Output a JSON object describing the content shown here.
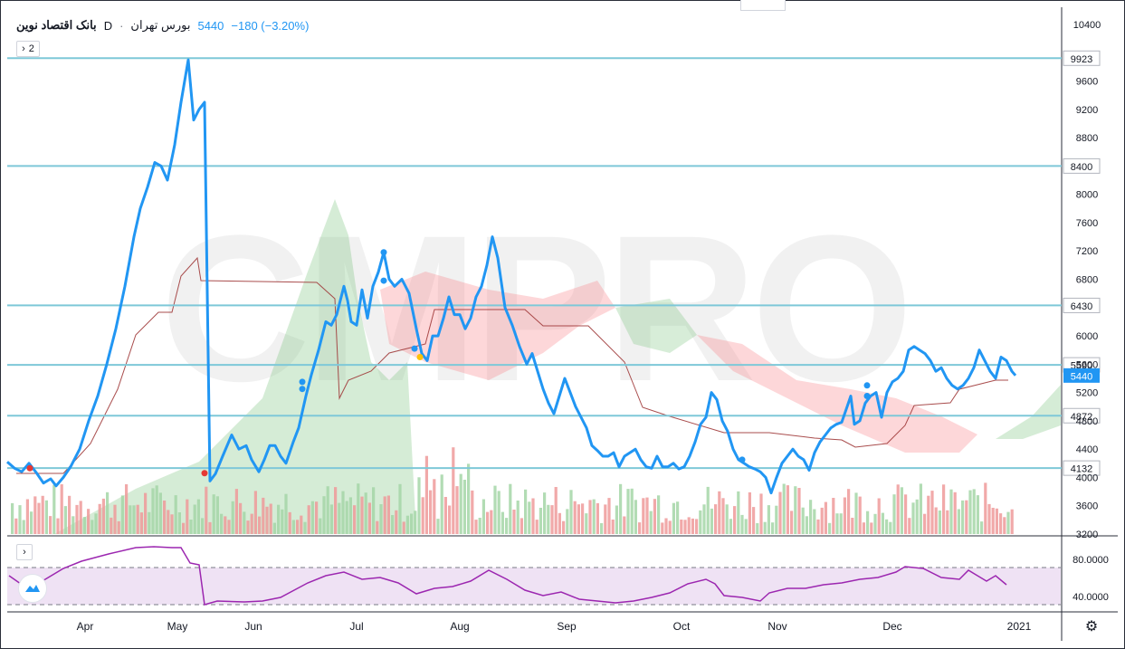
{
  "legend": {
    "title": "بانک اقتصاد نوین",
    "interval": "D",
    "exchange": "بورس تهران",
    "price": "5440",
    "change": "−180 (−3.20%)"
  },
  "panes": {
    "main_toggle": "2",
    "indicator_toggle": "›"
  },
  "watermark": "CMPRO",
  "chart_data": {
    "type": "line",
    "series": [
      {
        "values": [
          [
            0,
            4220
          ],
          [
            8,
            4130
          ],
          [
            16,
            4080
          ],
          [
            24,
            4200
          ],
          [
            32,
            4070
          ],
          [
            40,
            3920
          ],
          [
            48,
            3980
          ],
          [
            54,
            3880
          ],
          [
            62,
            4000
          ],
          [
            70,
            4150
          ],
          [
            80,
            4400
          ],
          [
            90,
            4800
          ],
          [
            100,
            5150
          ],
          [
            110,
            5600
          ],
          [
            120,
            6100
          ],
          [
            130,
            6700
          ],
          [
            140,
            7400
          ],
          [
            147,
            7800
          ],
          [
            155,
            8100
          ],
          [
            163,
            8450
          ],
          [
            170,
            8400
          ],
          [
            177,
            8200
          ],
          [
            185,
            8700
          ],
          [
            192,
            9300
          ],
          [
            200,
            9900
          ],
          [
            206,
            9050
          ],
          [
            212,
            9200
          ],
          [
            218,
            9300
          ],
          [
            224,
            3950
          ],
          [
            230,
            4050
          ],
          [
            238,
            4300
          ],
          [
            248,
            4600
          ],
          [
            256,
            4400
          ],
          [
            264,
            4450
          ],
          [
            270,
            4250
          ],
          [
            278,
            4080
          ],
          [
            284,
            4250
          ],
          [
            290,
            4450
          ],
          [
            296,
            4450
          ],
          [
            302,
            4300
          ],
          [
            308,
            4200
          ],
          [
            316,
            4500
          ],
          [
            322,
            4700
          ],
          [
            330,
            5150
          ],
          [
            336,
            5450
          ],
          [
            344,
            5800
          ],
          [
            352,
            6200
          ],
          [
            358,
            6150
          ],
          [
            364,
            6300
          ],
          [
            372,
            6700
          ],
          [
            376,
            6500
          ],
          [
            380,
            6200
          ],
          [
            386,
            6150
          ],
          [
            392,
            6650
          ],
          [
            398,
            6250
          ],
          [
            404,
            6700
          ],
          [
            410,
            6900
          ],
          [
            416,
            7180
          ],
          [
            422,
            6800
          ],
          [
            428,
            6700
          ],
          [
            436,
            6800
          ],
          [
            444,
            6600
          ],
          [
            452,
            6100
          ],
          [
            458,
            5750
          ],
          [
            464,
            5650
          ],
          [
            470,
            6000
          ],
          [
            476,
            6000
          ],
          [
            482,
            6250
          ],
          [
            488,
            6550
          ],
          [
            494,
            6300
          ],
          [
            500,
            6300
          ],
          [
            506,
            6100
          ],
          [
            512,
            6250
          ],
          [
            518,
            6550
          ],
          [
            524,
            6700
          ],
          [
            530,
            7000
          ],
          [
            536,
            7400
          ],
          [
            542,
            7100
          ],
          [
            550,
            6400
          ],
          [
            558,
            6150
          ],
          [
            566,
            5850
          ],
          [
            574,
            5600
          ],
          [
            580,
            5750
          ],
          [
            586,
            5500
          ],
          [
            592,
            5250
          ],
          [
            598,
            5050
          ],
          [
            604,
            4900
          ],
          [
            610,
            5150
          ],
          [
            616,
            5400
          ],
          [
            622,
            5200
          ],
          [
            628,
            5000
          ],
          [
            634,
            4850
          ],
          [
            640,
            4700
          ],
          [
            646,
            4450
          ],
          [
            652,
            4380
          ],
          [
            658,
            4300
          ],
          [
            664,
            4300
          ],
          [
            670,
            4350
          ],
          [
            676,
            4150
          ],
          [
            682,
            4300
          ],
          [
            688,
            4350
          ],
          [
            694,
            4400
          ],
          [
            700,
            4250
          ],
          [
            706,
            4150
          ],
          [
            712,
            4130
          ],
          [
            718,
            4300
          ],
          [
            724,
            4150
          ],
          [
            730,
            4150
          ],
          [
            736,
            4200
          ],
          [
            742,
            4120
          ],
          [
            748,
            4150
          ],
          [
            754,
            4300
          ],
          [
            760,
            4500
          ],
          [
            766,
            4750
          ],
          [
            772,
            4850
          ],
          [
            778,
            5200
          ],
          [
            784,
            5100
          ],
          [
            790,
            4800
          ],
          [
            796,
            4650
          ],
          [
            802,
            4400
          ],
          [
            808,
            4250
          ],
          [
            814,
            4200
          ],
          [
            820,
            4150
          ],
          [
            826,
            4120
          ],
          [
            832,
            4080
          ],
          [
            838,
            4000
          ],
          [
            844,
            3780
          ],
          [
            850,
            4000
          ],
          [
            856,
            4200
          ],
          [
            862,
            4300
          ],
          [
            868,
            4400
          ],
          [
            874,
            4300
          ],
          [
            880,
            4250
          ],
          [
            886,
            4100
          ],
          [
            892,
            4350
          ],
          [
            898,
            4500
          ],
          [
            904,
            4600
          ],
          [
            910,
            4700
          ],
          [
            916,
            4750
          ],
          [
            922,
            4780
          ],
          [
            928,
            5000
          ],
          [
            932,
            5150
          ],
          [
            936,
            4750
          ],
          [
            942,
            4800
          ],
          [
            948,
            5050
          ],
          [
            954,
            5150
          ],
          [
            960,
            5200
          ],
          [
            966,
            4850
          ],
          [
            972,
            5200
          ],
          [
            978,
            5350
          ],
          [
            984,
            5400
          ],
          [
            990,
            5500
          ],
          [
            996,
            5800
          ],
          [
            1002,
            5850
          ],
          [
            1008,
            5800
          ],
          [
            1014,
            5750
          ],
          [
            1020,
            5650
          ],
          [
            1026,
            5500
          ],
          [
            1032,
            5550
          ],
          [
            1038,
            5400
          ],
          [
            1044,
            5300
          ],
          [
            1050,
            5250
          ],
          [
            1056,
            5300
          ],
          [
            1062,
            5400
          ],
          [
            1068,
            5550
          ],
          [
            1074,
            5800
          ],
          [
            1080,
            5650
          ],
          [
            1086,
            5500
          ],
          [
            1092,
            5400
          ],
          [
            1098,
            5700
          ],
          [
            1104,
            5650
          ],
          [
            1110,
            5500
          ],
          [
            1114,
            5440
          ]
        ]
      }
    ],
    "price_axis_ticks": [
      "10400",
      "9600",
      "9200",
      "8800",
      "8400",
      "8000",
      "7600",
      "7200",
      "6800",
      "6400",
      "6000",
      "5600",
      "5200",
      "4800",
      "4400",
      "4000",
      "3600",
      "3200"
    ],
    "visible_y_labels": [
      "10400",
      "9600",
      "9200",
      "8800",
      "8000",
      "7600",
      "7200",
      "6800",
      "6000",
      "5600",
      "5200",
      "4800",
      "4400",
      "4000",
      "3600",
      "3200"
    ],
    "time_axis_labels": [
      "Apr",
      "May",
      "Jun",
      "Jul",
      "Aug",
      "Sep",
      "Oct",
      "Nov",
      "Dec",
      "2021"
    ],
    "horizontal_levels": [
      "9923",
      "8400",
      "6430",
      "5590",
      "4872",
      "4132"
    ],
    "last_price_label": "5440",
    "rsi_axis_labels": [
      "80.0000",
      "40.0000"
    ],
    "colors": {
      "price_line": "#2196f3",
      "level_line": "#7ec8d8",
      "base_line": "#a03a3a",
      "cloud_bull": "#7bc47f",
      "cloud_bear": "#f77c80",
      "volume_up": "#a5d6a7",
      "volume_down": "#ef9a9a",
      "rsi_line": "#9c27b0",
      "rsi_band": "#e8d5ef"
    }
  }
}
